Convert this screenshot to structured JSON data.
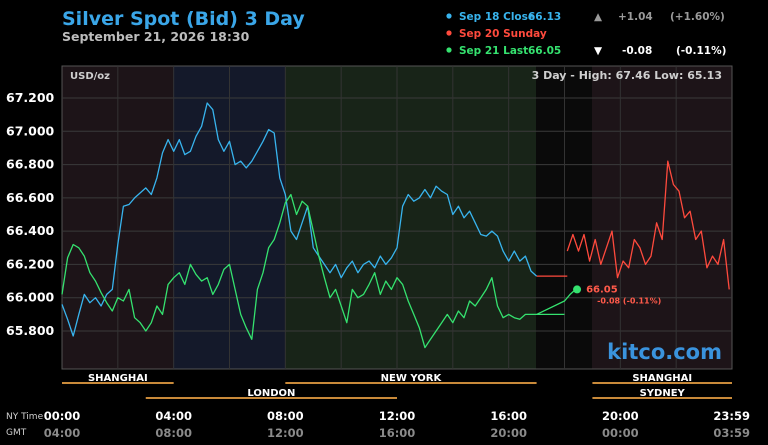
{
  "title": "Silver Spot (Bid) 3 Day",
  "subtitle": "September 21, 2026 18:30",
  "unit_label": "USD/oz",
  "high_low_label": "3 Day - High: 67.46  Low: 65.13",
  "watermark": "kitco.com",
  "legend": [
    {
      "label": "Sep 18 Close",
      "value": "66.13",
      "arrow": "▲",
      "change": "+1.04",
      "pct": "(+1.60%)",
      "color": "#38b4ee"
    },
    {
      "label": "Sep 20 Sunday",
      "value": "",
      "arrow": "",
      "change": "",
      "pct": "",
      "color": "#ff4a3d"
    },
    {
      "label": "Sep 21 Last",
      "value": "66.05",
      "arrow": "▼",
      "change": "-0.08",
      "pct": "(-0.11%)",
      "color": "#35e26f"
    }
  ],
  "last_label": {
    "value": "66.05",
    "change": "-0.08 (-0.11%)"
  },
  "markets_top": [
    {
      "name": "SHANGHAI",
      "start": 0,
      "end": 4
    },
    {
      "name": "NEW YORK",
      "start": 8,
      "end": 17
    },
    {
      "name": "SHANGHAI",
      "start": 19,
      "end": 24
    }
  ],
  "markets_bottom": [
    {
      "name": "LONDON",
      "start": 3,
      "end": 12
    },
    {
      "name": "SYDNEY",
      "start": 19,
      "end": 24
    }
  ],
  "x_labels": {
    "ny_label": "NY Time",
    "gmt_label": "GMT",
    "ny": [
      "00:00",
      "04:00",
      "08:00",
      "12:00",
      "16:00",
      "20:00",
      "23:59"
    ],
    "gmt": [
      "04:00",
      "08:00",
      "12:00",
      "16:00",
      "20:00",
      "00:00",
      "03:59"
    ]
  },
  "chart_data": {
    "type": "line",
    "title": "Silver Spot (Bid) 3 Day",
    "ylabel": "USD/oz",
    "xlabel": "NY Time",
    "xlim": [
      0,
      24
    ],
    "ylim": [
      65.6,
      67.3
    ],
    "yticks": [
      "65.800",
      "66.000",
      "66.200",
      "66.400",
      "66.600",
      "66.800",
      "67.000",
      "67.200"
    ],
    "grid": true,
    "series": [
      {
        "name": "Sep 18 Close",
        "color": "#38b4ee",
        "x": [
          0,
          0.2,
          0.4,
          0.6,
          0.8,
          1,
          1.2,
          1.4,
          1.6,
          1.8,
          2,
          2.2,
          2.4,
          2.6,
          2.8,
          3,
          3.2,
          3.4,
          3.6,
          3.8,
          4,
          4.2,
          4.4,
          4.6,
          4.8,
          5,
          5.2,
          5.4,
          5.6,
          5.8,
          6,
          6.2,
          6.4,
          6.6,
          6.8,
          7,
          7.2,
          7.4,
          7.6,
          7.8,
          8,
          8.2,
          8.4,
          8.6,
          8.8,
          9,
          9.2,
          9.4,
          9.6,
          9.8,
          10,
          10.2,
          10.4,
          10.6,
          10.8,
          11,
          11.2,
          11.4,
          11.6,
          11.8,
          12,
          12.2,
          12.4,
          12.6,
          12.8,
          13,
          13.2,
          13.4,
          13.6,
          13.8,
          14,
          14.2,
          14.4,
          14.6,
          14.8,
          15,
          15.2,
          15.4,
          15.6,
          15.8,
          16,
          16.2,
          16.4,
          16.6,
          16.8,
          17
        ],
        "values": [
          65.96,
          65.87,
          65.77,
          65.9,
          66.02,
          65.97,
          66.0,
          65.95,
          66.02,
          66.05,
          66.32,
          66.55,
          66.56,
          66.6,
          66.63,
          66.66,
          66.62,
          66.72,
          66.87,
          66.95,
          66.88,
          66.95,
          66.86,
          66.88,
          66.97,
          67.03,
          67.17,
          67.13,
          66.95,
          66.88,
          66.94,
          66.8,
          66.82,
          66.78,
          66.82,
          66.88,
          66.94,
          67.01,
          66.99,
          66.72,
          66.62,
          66.4,
          66.35,
          66.45,
          66.55,
          66.3,
          66.25,
          66.2,
          66.15,
          66.2,
          66.12,
          66.18,
          66.22,
          66.15,
          66.2,
          66.22,
          66.18,
          66.25,
          66.2,
          66.24,
          66.3,
          66.55,
          66.62,
          66.58,
          66.6,
          66.65,
          66.6,
          66.67,
          66.64,
          66.62,
          66.5,
          66.55,
          66.48,
          66.52,
          66.45,
          66.38,
          66.37,
          66.4,
          66.37,
          66.28,
          66.22,
          66.28,
          66.22,
          66.25,
          66.16,
          66.13
        ]
      },
      {
        "name": "Sep 20 Sunday",
        "color": "#ff4a3d",
        "x": [
          18.1,
          18.3,
          18.5,
          18.7,
          18.9,
          19.1,
          19.3,
          19.5,
          19.7,
          19.9,
          20.1,
          20.3,
          20.5,
          20.7,
          20.9,
          21.1,
          21.3,
          21.5,
          21.7,
          21.9,
          22.1,
          22.3,
          22.5,
          22.7,
          22.9,
          23.1,
          23.3,
          23.5,
          23.7,
          23.9
        ],
        "values": [
          66.28,
          66.38,
          66.28,
          66.38,
          66.22,
          66.35,
          66.2,
          66.3,
          66.4,
          66.12,
          66.22,
          66.18,
          66.35,
          66.3,
          66.2,
          66.25,
          66.45,
          66.35,
          66.82,
          66.68,
          66.64,
          66.48,
          66.52,
          66.35,
          66.4,
          66.18,
          66.25,
          66.2,
          66.35,
          66.05
        ]
      },
      {
        "name": "Sep 21 Last",
        "color": "#35e26f",
        "x": [
          0,
          0.2,
          0.4,
          0.6,
          0.8,
          1,
          1.2,
          1.4,
          1.6,
          1.8,
          2,
          2.2,
          2.4,
          2.6,
          2.8,
          3,
          3.2,
          3.4,
          3.6,
          3.8,
          4,
          4.2,
          4.4,
          4.6,
          4.8,
          5,
          5.2,
          5.4,
          5.6,
          5.8,
          6,
          6.2,
          6.4,
          6.6,
          6.8,
          7,
          7.2,
          7.4,
          7.6,
          7.8,
          8,
          8.2,
          8.4,
          8.6,
          8.8,
          9,
          9.2,
          9.4,
          9.6,
          9.8,
          10,
          10.2,
          10.4,
          10.6,
          10.8,
          11,
          11.2,
          11.4,
          11.6,
          11.8,
          12,
          12.2,
          12.4,
          12.6,
          12.8,
          13,
          13.2,
          13.4,
          13.6,
          13.8,
          14,
          14.2,
          14.4,
          14.6,
          14.8,
          15,
          15.2,
          15.4,
          15.6,
          15.8,
          16,
          16.2,
          16.4,
          16.6,
          16.8,
          17,
          18,
          18.2,
          18.4
        ],
        "values": [
          66.02,
          66.24,
          66.32,
          66.3,
          66.25,
          66.15,
          66.1,
          66.03,
          65.97,
          65.92,
          66.0,
          65.98,
          66.05,
          65.88,
          65.85,
          65.8,
          65.85,
          65.95,
          65.9,
          66.08,
          66.12,
          66.15,
          66.08,
          66.2,
          66.14,
          66.1,
          66.12,
          66.02,
          66.08,
          66.17,
          66.2,
          66.05,
          65.9,
          65.82,
          65.75,
          66.05,
          66.15,
          66.3,
          66.35,
          66.45,
          66.57,
          66.62,
          66.5,
          66.58,
          66.55,
          66.4,
          66.25,
          66.12,
          66.0,
          66.05,
          65.95,
          65.85,
          66.05,
          66.0,
          66.02,
          66.08,
          66.15,
          66.02,
          66.1,
          66.05,
          66.12,
          66.08,
          65.98,
          65.9,
          65.82,
          65.7,
          65.75,
          65.8,
          65.85,
          65.9,
          65.85,
          65.92,
          65.88,
          65.98,
          65.95,
          66.0,
          66.05,
          66.12,
          65.95,
          65.88,
          65.9,
          65.88,
          65.87,
          65.9,
          65.9,
          65.9,
          65.98,
          66.02,
          66.05
        ]
      }
    ],
    "connectors": [
      {
        "color": "#ff4a3d",
        "x": [
          17,
          18.1
        ],
        "values": [
          66.13,
          66.13
        ]
      },
      {
        "color": "#35e26f",
        "x": [
          17,
          18
        ],
        "values": [
          65.9,
          65.9
        ]
      }
    ],
    "last_point": {
      "x": 18.45,
      "value": 66.05
    }
  }
}
